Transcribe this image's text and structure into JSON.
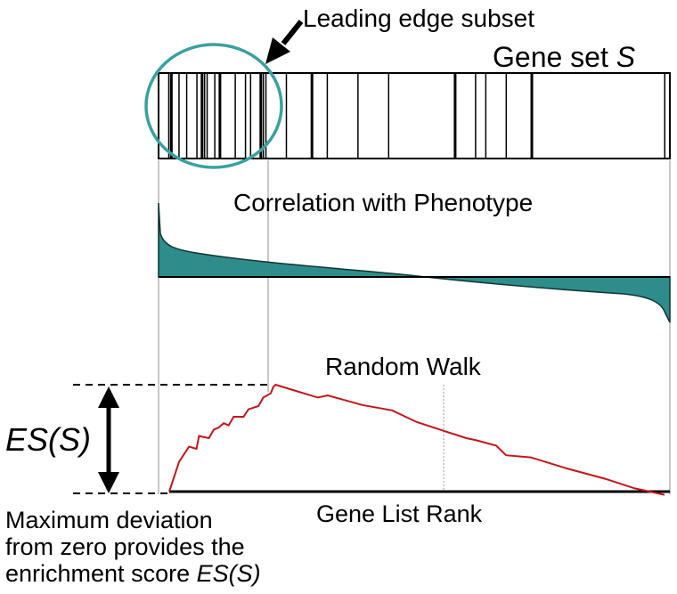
{
  "labels": {
    "leading_edge": "Leading edge subset",
    "gene_set": "Gene set",
    "gene_set_var": "S",
    "correlation": "Correlation with Phenotype",
    "random_walk": "Random Walk",
    "es": "ES(S)",
    "gene_list_rank": "Gene List Rank",
    "caption_line1": "Maximum deviation",
    "caption_line2": "from zero provides the",
    "caption_line3_prefix": "enrichment score",
    "caption_line3_ital": "ES(S)"
  },
  "colors": {
    "teal": "#2e8c8a",
    "circle": "#3aa0a0",
    "walk": "#c0161c",
    "black": "#000000",
    "grey": "#b5b5b5"
  },
  "gene_hits": [
    0.02,
    0.025,
    0.04,
    0.055,
    0.075,
    0.085,
    0.09,
    0.095,
    0.11,
    0.12,
    0.15,
    0.17,
    0.18,
    0.2,
    0.205,
    0.21,
    0.25,
    0.3,
    0.33,
    0.39,
    0.45,
    0.58,
    0.62,
    0.64,
    0.68,
    0.73,
    0.99
  ],
  "leading_edge_fraction": 0.21,
  "random_walk": [
    [
      0.0,
      0.0
    ],
    [
      0.02,
      0.28
    ],
    [
      0.04,
      0.42
    ],
    [
      0.055,
      0.4
    ],
    [
      0.06,
      0.52
    ],
    [
      0.08,
      0.5
    ],
    [
      0.09,
      0.58
    ],
    [
      0.1,
      0.6
    ],
    [
      0.11,
      0.64
    ],
    [
      0.12,
      0.62
    ],
    [
      0.13,
      0.7
    ],
    [
      0.15,
      0.7
    ],
    [
      0.16,
      0.77
    ],
    [
      0.18,
      0.8
    ],
    [
      0.19,
      0.88
    ],
    [
      0.205,
      0.92
    ],
    [
      0.21,
      0.98
    ],
    [
      0.215,
      1.0
    ],
    [
      0.25,
      0.95
    ],
    [
      0.3,
      0.88
    ],
    [
      0.32,
      0.9
    ],
    [
      0.39,
      0.81
    ],
    [
      0.45,
      0.76
    ],
    [
      0.5,
      0.65
    ],
    [
      0.6,
      0.5
    ],
    [
      0.62,
      0.48
    ],
    [
      0.66,
      0.43
    ],
    [
      0.68,
      0.34
    ],
    [
      0.73,
      0.32
    ],
    [
      0.8,
      0.22
    ],
    [
      0.88,
      0.12
    ],
    [
      0.94,
      0.03
    ],
    [
      1.0,
      -0.03
    ]
  ]
}
